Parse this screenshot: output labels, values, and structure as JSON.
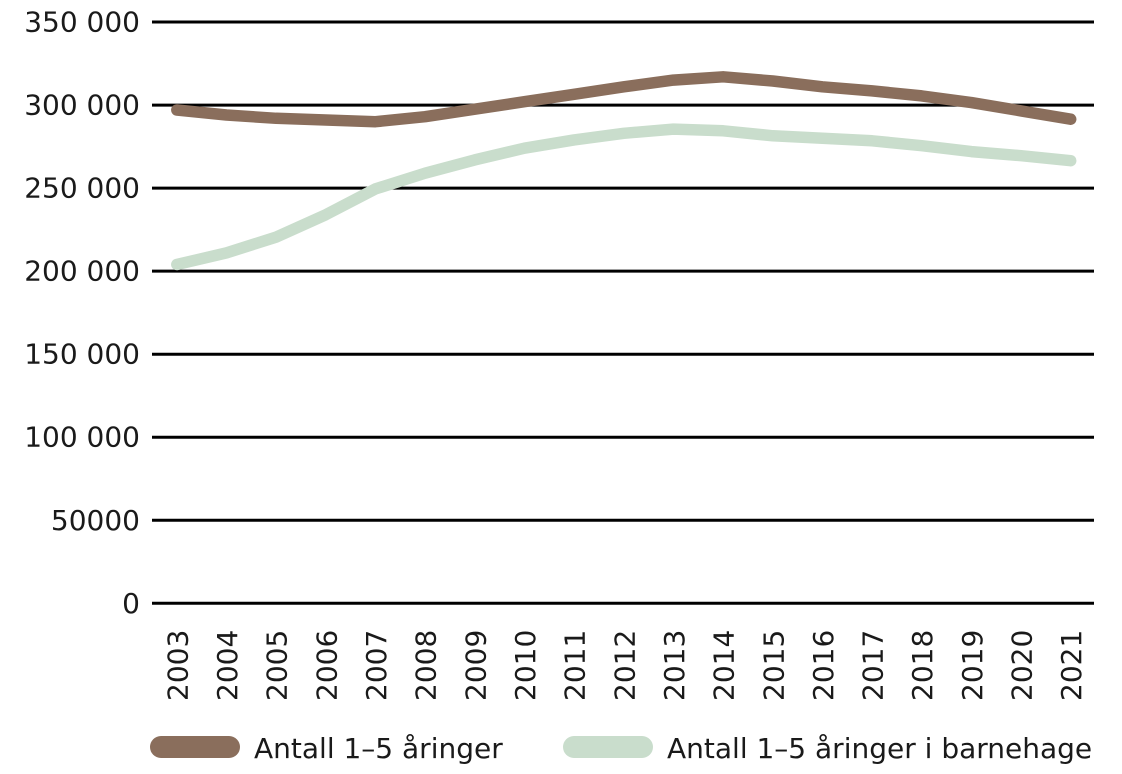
{
  "colors": {
    "series_population": "#8a6e5c",
    "series_kindergarten": "#c9ddcc",
    "gridline": "#000000",
    "text": "#1a1a1a",
    "background": "#ffffff"
  },
  "legend": {
    "items": [
      {
        "label": "Antall 1–5 åringer",
        "color": "#8a6e5c"
      },
      {
        "label": "Antall 1–5 åringer i barnehage",
        "color": "#c9ddcc"
      }
    ]
  },
  "chart_data": {
    "type": "line",
    "title": "",
    "xlabel": "",
    "ylabel": "",
    "x": [
      "2003",
      "2004",
      "2005",
      "2006",
      "2007",
      "2008",
      "2009",
      "2010",
      "2011",
      "2012",
      "2013",
      "2014",
      "2015",
      "2016",
      "2017",
      "2018",
      "2019",
      "2020",
      "2021"
    ],
    "series": [
      {
        "name": "Antall 1–5 åringer",
        "color": "#8a6e5c",
        "values": [
          297000,
          294000,
          292000,
          291000,
          290000,
          293000,
          297500,
          302000,
          306500,
          311000,
          315000,
          317000,
          314500,
          311000,
          308500,
          305500,
          301500,
          296500,
          291500
        ]
      },
      {
        "name": "Antall 1–5 åringer i barnehage",
        "color": "#c9ddcc",
        "values": [
          204000,
          211000,
          220500,
          234000,
          249500,
          259000,
          267000,
          274000,
          279000,
          283000,
          285500,
          284500,
          281500,
          280000,
          278500,
          275500,
          272000,
          269500,
          266500
        ]
      }
    ],
    "ylim": [
      0,
      350000
    ],
    "ytick_step": 50000,
    "ytick_labels": [
      "0",
      "50000",
      "100 000",
      "150 000",
      "200 000",
      "250 000",
      "300 000",
      "350 000"
    ],
    "grid": "horizontal",
    "legend_position": "bottom",
    "x_tick_rotation": -90
  }
}
